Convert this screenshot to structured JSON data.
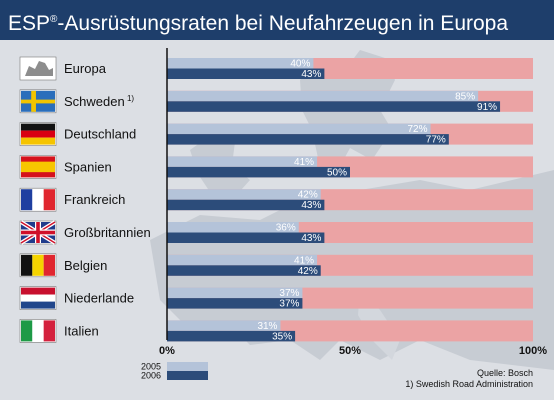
{
  "title": {
    "text": "ESP",
    "reg": "®",
    "rest": "-Ausrüstungsraten bei Neufahrzeugen in Europa"
  },
  "chart_data": {
    "type": "bar",
    "orientation": "horizontal",
    "categories": [
      "Europa",
      "Schweden",
      "Deutschland",
      "Spanien",
      "Frankreich",
      "Großbritannien",
      "Belgien",
      "Niederlande",
      "Italien"
    ],
    "category_notes": [
      "",
      "1)",
      "",
      "",
      "",
      "",
      "",
      "",
      ""
    ],
    "flags": [
      "europe-map-icon",
      "sweden-flag-icon",
      "germany-flag-icon",
      "spain-flag-icon",
      "france-flag-icon",
      "uk-flag-icon",
      "belgium-flag-icon",
      "netherlands-flag-icon",
      "italy-flag-icon"
    ],
    "series": [
      {
        "name": "2005",
        "values": [
          40,
          85,
          72,
          41,
          42,
          36,
          41,
          37,
          31
        ],
        "labels": [
          "40%",
          "85%",
          "72%",
          "41%",
          "42%",
          "36%",
          "41%",
          "37%",
          "31%"
        ],
        "color": "#b4c3d9"
      },
      {
        "name": "2006",
        "values": [
          43,
          91,
          77,
          50,
          43,
          43,
          42,
          37,
          35
        ],
        "labels": [
          "43%",
          "91%",
          "77%",
          "50%",
          "43%",
          "43%",
          "42%",
          "37%",
          "35%"
        ],
        "color": "#2c4c7a"
      }
    ],
    "remainder_color": "#eba3a4",
    "xlim": [
      0,
      100
    ],
    "xticks": [
      0,
      50,
      100
    ],
    "xtick_labels": [
      "0%",
      "50%",
      "100%"
    ],
    "grid": false,
    "legend": "bottom-left"
  },
  "source": "Quelle: Bosch",
  "footnote": "1) Swedish Road Administration"
}
